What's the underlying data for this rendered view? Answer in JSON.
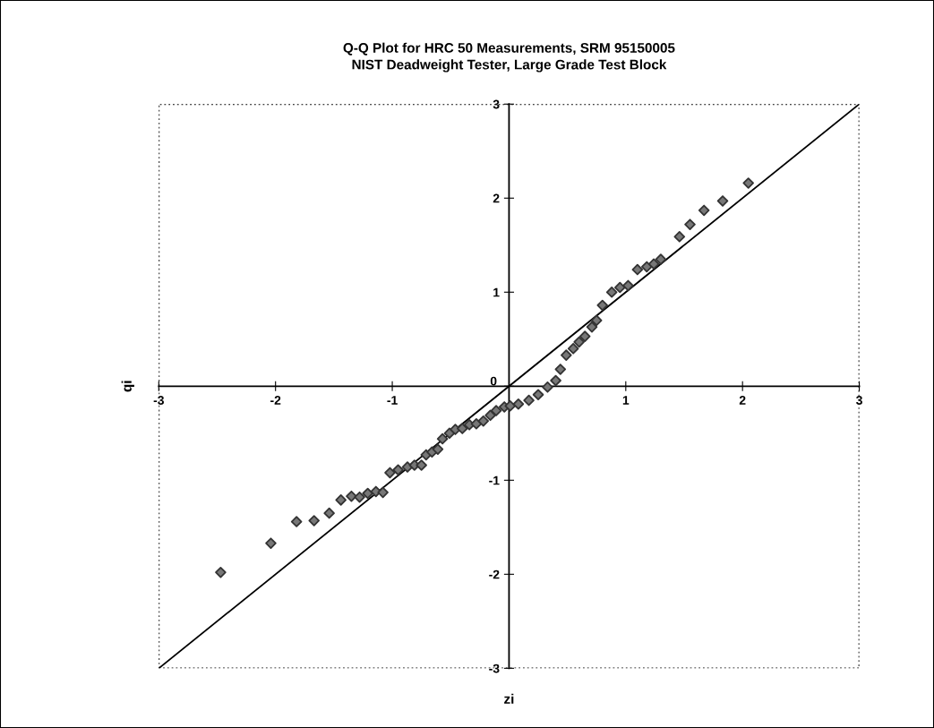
{
  "chart_data": {
    "type": "scatter",
    "title": "Q-Q Plot for HRC 50 Measurements, SRM 95150005\nNIST Deadweight Tester, Large Grade Test Block",
    "xlabel": "zi",
    "ylabel": "qi",
    "xlim": [
      -3,
      3
    ],
    "ylim": [
      -3,
      3
    ],
    "xticks": [
      -3,
      -2,
      -1,
      1,
      2,
      3
    ],
    "yticks": [
      -3,
      -2,
      -1,
      0,
      1,
      2,
      3
    ],
    "grid": false,
    "series": [
      {
        "marker": "diamond",
        "color": "#333333",
        "x": [
          -2.47,
          -2.04,
          -1.82,
          -1.67,
          -1.54,
          -1.44,
          -1.35,
          -1.28,
          -1.21,
          -1.14,
          -1.08,
          -1.02,
          -0.95,
          -0.87,
          -0.81,
          -0.75,
          -0.71,
          -0.66,
          -0.61,
          -0.57,
          -0.51,
          -0.46,
          -0.4,
          -0.34,
          -0.28,
          -0.22,
          -0.16,
          -0.11,
          -0.04,
          0.01,
          0.08,
          0.17,
          0.25,
          0.33,
          0.4,
          0.44,
          0.49,
          0.55,
          0.6,
          0.65,
          0.71,
          0.75,
          0.8,
          0.88,
          0.95,
          1.02,
          1.1,
          1.18,
          1.24,
          1.3,
          1.46,
          1.55,
          1.67,
          1.83,
          2.05
        ],
        "values": [
          -1.98,
          -1.67,
          -1.44,
          -1.43,
          -1.35,
          -1.21,
          -1.17,
          -1.18,
          -1.14,
          -1.12,
          -1.13,
          -0.92,
          -0.89,
          -0.86,
          -0.84,
          -0.84,
          -0.73,
          -0.7,
          -0.67,
          -0.56,
          -0.5,
          -0.46,
          -0.45,
          -0.41,
          -0.4,
          -0.37,
          -0.31,
          -0.26,
          -0.22,
          -0.21,
          -0.19,
          -0.15,
          -0.09,
          -0.01,
          0.06,
          0.18,
          0.33,
          0.4,
          0.47,
          0.53,
          0.63,
          0.7,
          0.86,
          1.0,
          1.05,
          1.07,
          1.24,
          1.27,
          1.3,
          1.35,
          1.59,
          1.72,
          1.87,
          1.97,
          2.16
        ]
      },
      {
        "type": "line",
        "marker": "none",
        "color": "#000000",
        "x": [
          -3,
          3
        ],
        "values": [
          -3,
          3
        ]
      }
    ]
  }
}
